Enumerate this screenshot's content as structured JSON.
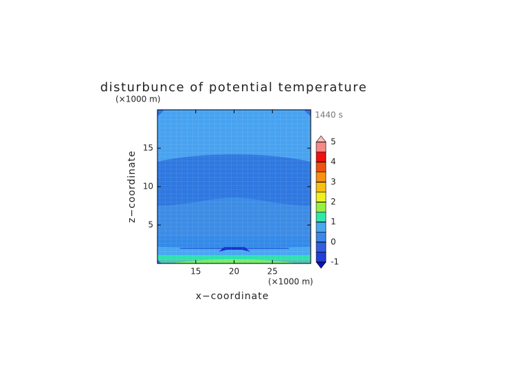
{
  "chart_data": {
    "type": "contour",
    "title": "disturbunce of potential temperature",
    "x_label": "x−coordinate",
    "y_label": "z−coordinate",
    "x_unit": "(×1000 m)",
    "y_unit": "(×1000 m)",
    "time_label": "1440 s",
    "xlim": [
      10,
      30
    ],
    "xticks": [
      15,
      20,
      25
    ],
    "ylim": [
      0,
      20
    ],
    "yticks": [
      5,
      10,
      15
    ],
    "colorbar": {
      "levels": [
        -1,
        -0.5,
        0,
        0.5,
        1,
        1.5,
        2,
        2.5,
        3,
        3.5,
        4,
        4.5,
        5
      ],
      "colors": [
        "#2040d8",
        "#3060e0",
        "#3c88e8",
        "#48a8f0",
        "#30e8a8",
        "#98f040",
        "#f0f020",
        "#f8c010",
        "#f89010",
        "#f05010",
        "#f01010",
        "#f88888"
      ],
      "under_color": "#1010c0",
      "over_color": "#f8c0c0",
      "ticks": [
        -1,
        0,
        1,
        2,
        3,
        4,
        5
      ]
    }
  }
}
